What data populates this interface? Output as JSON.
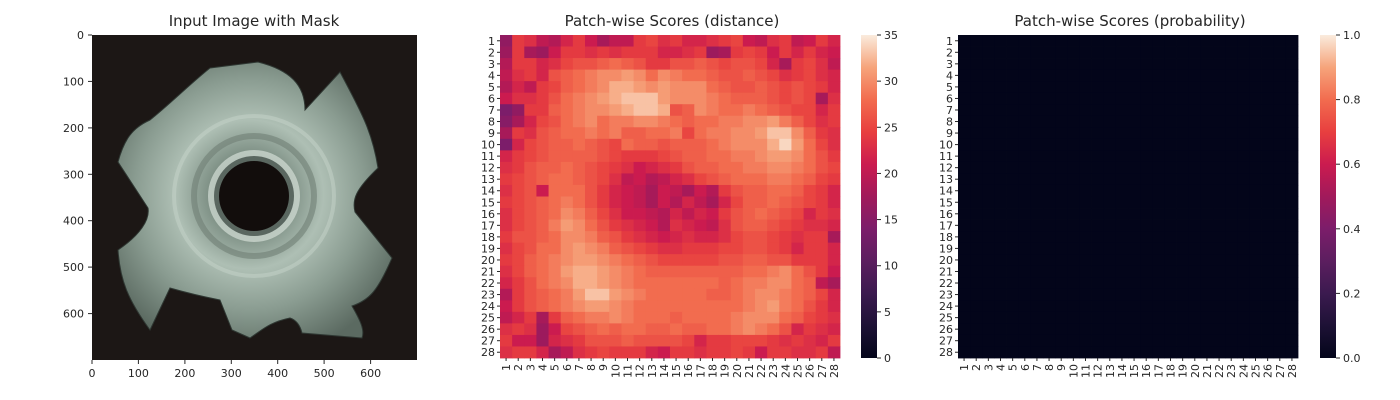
{
  "chart_data": [
    {
      "type": "image",
      "title": "Input Image with Mask",
      "xticks": [
        "0",
        "100",
        "200",
        "300",
        "400",
        "500",
        "600"
      ],
      "yticks": [
        "0",
        "100",
        "200",
        "300",
        "400",
        "500",
        "600"
      ],
      "xlim": [
        0,
        700
      ],
      "ylim": [
        0,
        700
      ],
      "image_description_icon": "metal-nut-photo",
      "colors": {
        "background": "#1c1715",
        "metal": "#9fb0a4",
        "metal_dark": "#56625a",
        "hole": "#120d0c"
      }
    },
    {
      "type": "heatmap",
      "title": "Patch-wise Scores (distance)",
      "rows": 28,
      "cols": 28,
      "row_labels": [
        "1",
        "2",
        "3",
        "4",
        "5",
        "6",
        "7",
        "8",
        "9",
        "10",
        "11",
        "12",
        "13",
        "14",
        "15",
        "16",
        "17",
        "18",
        "19",
        "20",
        "21",
        "22",
        "23",
        "24",
        "25",
        "26",
        "27",
        "28"
      ],
      "col_labels": [
        "1",
        "2",
        "3",
        "4",
        "5",
        "6",
        "7",
        "8",
        "9",
        "10",
        "11",
        "12",
        "13",
        "14",
        "15",
        "16",
        "17",
        "18",
        "19",
        "20",
        "21",
        "22",
        "23",
        "24",
        "25",
        "26",
        "27",
        "28"
      ],
      "colorbar": {
        "ticks": [
          "0",
          "5",
          "10",
          "15",
          "20",
          "25",
          "30",
          "35"
        ],
        "min": 0,
        "max": 35,
        "colormap": "rocket"
      },
      "values": [
        [
          16,
          24,
          23,
          20,
          19,
          22,
          24,
          21,
          18,
          20,
          20,
          24,
          25,
          23,
          24,
          22,
          22,
          23,
          24,
          25,
          21,
          20,
          23,
          24,
          20,
          21,
          24,
          22
        ],
        [
          17,
          24,
          18,
          17,
          21,
          24,
          24,
          23,
          24,
          23,
          24,
          24,
          24,
          22,
          22,
          23,
          24,
          17,
          18,
          24,
          25,
          24,
          21,
          24,
          22,
          24,
          22,
          21
        ],
        [
          19,
          24,
          24,
          22,
          23,
          25,
          26,
          26,
          27,
          28,
          27,
          26,
          24,
          24,
          26,
          26,
          27,
          26,
          25,
          26,
          26,
          25,
          22,
          18,
          24,
          25,
          23,
          20
        ],
        [
          20,
          23,
          24,
          22,
          26,
          27,
          28,
          29,
          30,
          30,
          31,
          30,
          28,
          30,
          29,
          28,
          28,
          27,
          26,
          26,
          27,
          26,
          25,
          23,
          24,
          25,
          23,
          22
        ],
        [
          19,
          22,
          20,
          24,
          25,
          27,
          28,
          29,
          30,
          32,
          32,
          31,
          30,
          31,
          30,
          30,
          30,
          28,
          27,
          26,
          26,
          27,
          26,
          25,
          26,
          25,
          24,
          22
        ],
        [
          21,
          23,
          23,
          24,
          26,
          28,
          29,
          30,
          31,
          32,
          33,
          33,
          33,
          31,
          30,
          30,
          30,
          29,
          28,
          27,
          27,
          27,
          26,
          25,
          26,
          25,
          18,
          23
        ],
        [
          14,
          16,
          24,
          24,
          27,
          28,
          29,
          30,
          30,
          31,
          32,
          33,
          33,
          32,
          26,
          27,
          30,
          29,
          28,
          28,
          29,
          28,
          27,
          26,
          25,
          25,
          22,
          24
        ],
        [
          15,
          18,
          22,
          25,
          26,
          28,
          29,
          30,
          28,
          29,
          29,
          30,
          30,
          29,
          28,
          27,
          28,
          28,
          29,
          29,
          30,
          30,
          31,
          29,
          27,
          25,
          23,
          24
        ],
        [
          18,
          24,
          23,
          26,
          27,
          28,
          28,
          29,
          28,
          29,
          27,
          27,
          28,
          28,
          29,
          25,
          28,
          29,
          29,
          30,
          30,
          31,
          33,
          33,
          30,
          27,
          24,
          23
        ],
        [
          14,
          22,
          25,
          26,
          27,
          27,
          28,
          27,
          26,
          25,
          28,
          27,
          27,
          26,
          27,
          27,
          27,
          28,
          29,
          30,
          30,
          30,
          32,
          34,
          31,
          28,
          25,
          23
        ],
        [
          22,
          24,
          25,
          26,
          27,
          27,
          27,
          27,
          26,
          25,
          24,
          24,
          24,
          25,
          26,
          27,
          27,
          28,
          28,
          29,
          29,
          30,
          31,
          31,
          30,
          28,
          26,
          24
        ],
        [
          23,
          24,
          26,
          27,
          27,
          28,
          27,
          26,
          25,
          24,
          23,
          21,
          22,
          23,
          24,
          26,
          27,
          27,
          28,
          28,
          29,
          29,
          30,
          30,
          29,
          28,
          26,
          25
        ],
        [
          24,
          25,
          26,
          27,
          28,
          28,
          27,
          26,
          25,
          23,
          20,
          21,
          19,
          20,
          22,
          23,
          25,
          26,
          27,
          28,
          28,
          28,
          29,
          29,
          28,
          27,
          25,
          24
        ],
        [
          23,
          25,
          26,
          21,
          28,
          28,
          28,
          26,
          24,
          22,
          21,
          20,
          18,
          21,
          20,
          18,
          21,
          19,
          24,
          26,
          27,
          27,
          28,
          28,
          27,
          25,
          24,
          22
        ],
        [
          24,
          25,
          26,
          27,
          28,
          29,
          28,
          26,
          24,
          22,
          21,
          20,
          18,
          21,
          19,
          22,
          20,
          18,
          22,
          25,
          27,
          27,
          28,
          27,
          26,
          25,
          24,
          22
        ],
        [
          23,
          25,
          26,
          27,
          28,
          30,
          29,
          27,
          25,
          23,
          21,
          21,
          20,
          19,
          22,
          20,
          22,
          21,
          24,
          26,
          27,
          28,
          27,
          26,
          25,
          22,
          24,
          23
        ],
        [
          23,
          25,
          26,
          27,
          29,
          31,
          30,
          28,
          26,
          24,
          23,
          22,
          21,
          19,
          23,
          22,
          21,
          20,
          23,
          26,
          27,
          27,
          26,
          25,
          24,
          23,
          23,
          22
        ],
        [
          24,
          26,
          26,
          27,
          28,
          30,
          30,
          29,
          27,
          26,
          24,
          23,
          22,
          21,
          22,
          23,
          22,
          22,
          23,
          25,
          26,
          26,
          25,
          24,
          23,
          24,
          24,
          18
        ],
        [
          23,
          25,
          26,
          28,
          28,
          30,
          31,
          30,
          29,
          27,
          26,
          25,
          24,
          23,
          23,
          24,
          24,
          24,
          25,
          25,
          26,
          26,
          25,
          24,
          22,
          24,
          24,
          22
        ],
        [
          24,
          25,
          27,
          28,
          29,
          30,
          31,
          31,
          30,
          29,
          28,
          27,
          26,
          25,
          25,
          25,
          25,
          25,
          26,
          26,
          27,
          27,
          26,
          26,
          24,
          24,
          24,
          22
        ],
        [
          23,
          25,
          27,
          28,
          29,
          31,
          32,
          32,
          31,
          30,
          29,
          28,
          27,
          27,
          27,
          27,
          27,
          27,
          27,
          27,
          28,
          28,
          29,
          30,
          28,
          26,
          24,
          21
        ],
        [
          22,
          24,
          26,
          28,
          29,
          30,
          32,
          32,
          31,
          30,
          29,
          28,
          28,
          28,
          28,
          28,
          28,
          28,
          27,
          28,
          29,
          29,
          30,
          30,
          28,
          27,
          20,
          18
        ],
        [
          19,
          24,
          26,
          27,
          28,
          29,
          31,
          33,
          33,
          31,
          30,
          29,
          28,
          28,
          28,
          28,
          28,
          27,
          27,
          28,
          29,
          30,
          30,
          29,
          28,
          27,
          25,
          22
        ],
        [
          21,
          24,
          26,
          27,
          28,
          29,
          30,
          31,
          31,
          30,
          29,
          28,
          28,
          28,
          28,
          28,
          28,
          28,
          28,
          28,
          29,
          30,
          31,
          29,
          28,
          26,
          24,
          22
        ],
        [
          20,
          22,
          24,
          18,
          24,
          27,
          28,
          29,
          29,
          30,
          29,
          28,
          28,
          28,
          27,
          28,
          28,
          28,
          28,
          29,
          30,
          30,
          30,
          28,
          27,
          25,
          24,
          23
        ],
        [
          23,
          24,
          23,
          17,
          21,
          25,
          26,
          27,
          28,
          27,
          28,
          28,
          27,
          27,
          28,
          27,
          27,
          28,
          28,
          29,
          30,
          29,
          28,
          26,
          22,
          24,
          23,
          22
        ],
        [
          24,
          21,
          21,
          17,
          22,
          23,
          24,
          26,
          26,
          26,
          27,
          26,
          26,
          26,
          26,
          25,
          22,
          24,
          24,
          25,
          25,
          25,
          24,
          23,
          24,
          23,
          22,
          24
        ],
        [
          23,
          24,
          24,
          22,
          18,
          20,
          23,
          24,
          25,
          24,
          24,
          24,
          22,
          21,
          24,
          24,
          23,
          24,
          24,
          25,
          24,
          21,
          24,
          24,
          23,
          23,
          24,
          20
        ]
      ]
    },
    {
      "type": "heatmap",
      "title": "Patch-wise Scores (probability)",
      "rows": 28,
      "cols": 28,
      "row_labels": [
        "1",
        "2",
        "3",
        "4",
        "5",
        "6",
        "7",
        "8",
        "9",
        "10",
        "11",
        "12",
        "13",
        "14",
        "15",
        "16",
        "17",
        "18",
        "19",
        "20",
        "21",
        "22",
        "23",
        "24",
        "25",
        "26",
        "27",
        "28"
      ],
      "col_labels": [
        "1",
        "2",
        "3",
        "4",
        "5",
        "6",
        "7",
        "8",
        "9",
        "10",
        "11",
        "12",
        "13",
        "14",
        "15",
        "16",
        "17",
        "18",
        "19",
        "20",
        "21",
        "22",
        "23",
        "24",
        "25",
        "26",
        "27",
        "28"
      ],
      "colorbar": {
        "ticks": [
          "0.0",
          "0.2",
          "0.4",
          "0.6",
          "0.8",
          "1.0"
        ],
        "min": 0,
        "max": 1,
        "colormap": "rocket"
      },
      "values_description": "all approximately 0.0",
      "value": 0.0
    }
  ]
}
